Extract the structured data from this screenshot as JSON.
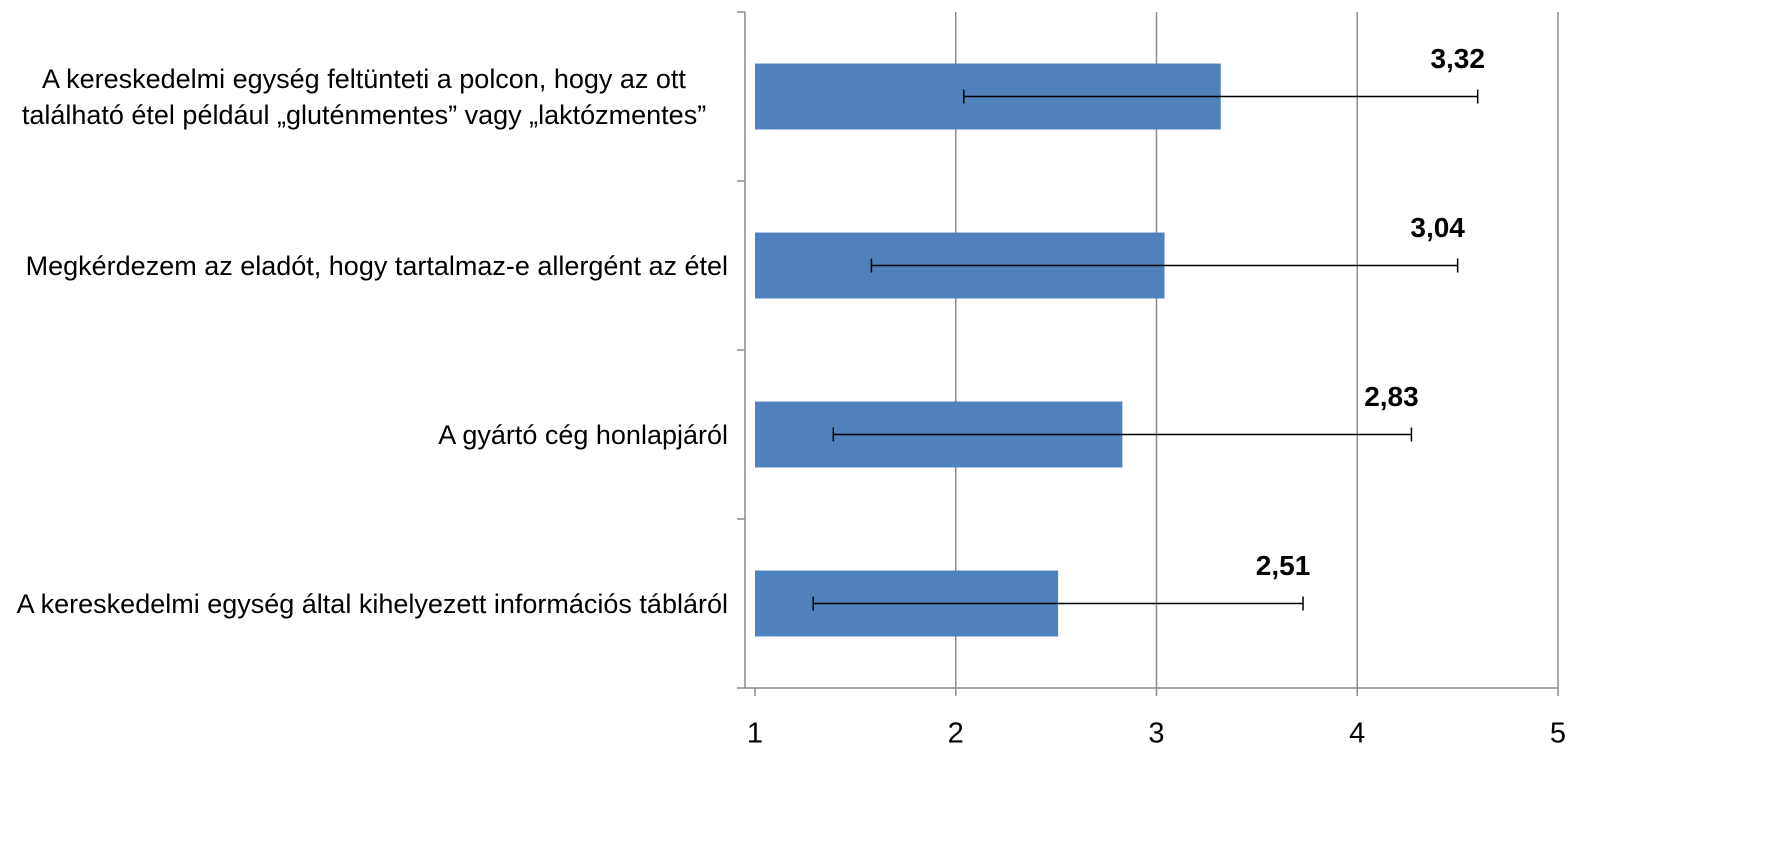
{
  "chart_data": {
    "type": "bar",
    "orientation": "horizontal",
    "categories": [
      "A kereskedelmi egység feltünteti a polcon, hogy az ott található étel például „gluténmentes” vagy „laktózmentes”",
      "Megkérdezem az eladót, hogy tartalmaz-e allergént az étel",
      "A gyártó cég honlapjáról",
      "A kereskedelmi egység által kihelyezett információs tábláról"
    ],
    "values": [
      3.32,
      3.04,
      2.83,
      2.51
    ],
    "value_labels": [
      "3,32",
      "3,04",
      "2,83",
      "2,51"
    ],
    "errors": [
      1.28,
      1.46,
      1.44,
      1.22
    ],
    "color": "#4f81bd",
    "xlim": [
      1,
      5
    ],
    "xticks": [
      1,
      2,
      3,
      4,
      5
    ],
    "grid": true
  }
}
